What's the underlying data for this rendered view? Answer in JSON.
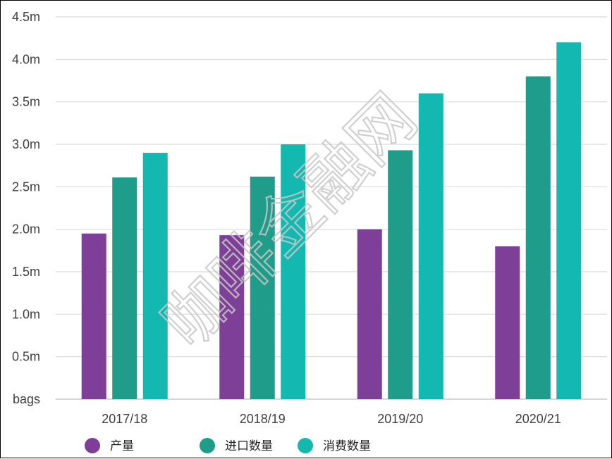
{
  "chart_data": {
    "type": "bar",
    "categories": [
      "2017/18",
      "2018/19",
      "2019/20",
      "2020/21"
    ],
    "series": [
      {
        "name": "产量",
        "values": [
          1.95,
          1.93,
          2.0,
          1.8
        ],
        "color": "#7e3f98"
      },
      {
        "name": "进口数量",
        "values": [
          2.61,
          2.62,
          2.93,
          3.8
        ],
        "color": "#1f9c8a"
      },
      {
        "name": "消费数量",
        "values": [
          2.9,
          3.0,
          3.6,
          4.2
        ],
        "color": "#13b8b0"
      }
    ],
    "yunit": "m",
    "ylim": [
      0,
      4.5
    ],
    "yticks": [
      "bags",
      "0.5m",
      "1.0m",
      "1.5m",
      "2.0m",
      "2.5m",
      "3.0m",
      "3.5m",
      "4.0m",
      "4.5m"
    ],
    "grid": true,
    "legend_position": "bottom-left"
  },
  "watermark": "咖啡金融网"
}
